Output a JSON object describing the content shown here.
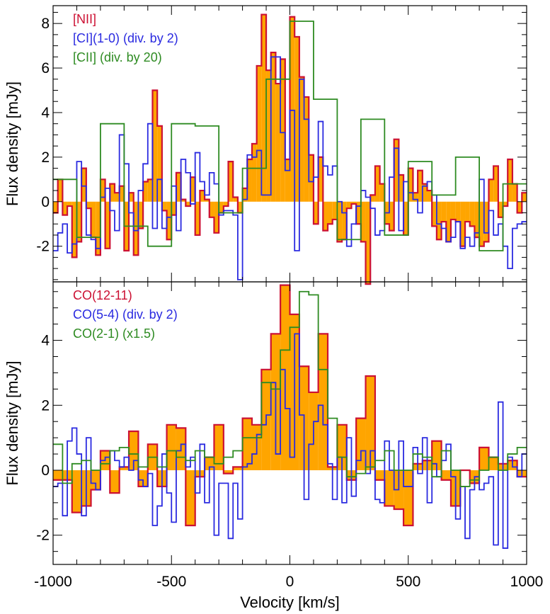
{
  "chart_data": [
    {
      "type": "line",
      "step": true,
      "xlabel": "",
      "ylabel": "Flux density [mJy]",
      "xlim": [
        -1000,
        1000
      ],
      "ylim": [
        -3.6,
        8.8
      ],
      "yticks": [
        -2,
        0,
        2,
        4,
        6,
        8
      ],
      "colors": {
        "primary": "#cc1133",
        "secondary": "#2a2ae0",
        "tertiary": "#2e8b22",
        "fill": "#ffa500"
      },
      "series": [
        {
          "name": "[NII]",
          "style": "filled",
          "x": [
            -1000,
            -980,
            -960,
            -940,
            -920,
            -900,
            -880,
            -860,
            -840,
            -820,
            -800,
            -780,
            -760,
            -740,
            -720,
            -700,
            -680,
            -660,
            -640,
            -620,
            -600,
            -580,
            -560,
            -540,
            -520,
            -500,
            -480,
            -460,
            -440,
            -420,
            -400,
            -380,
            -360,
            -340,
            -320,
            -300,
            -280,
            -260,
            -240,
            -220,
            -200,
            -180,
            -160,
            -140,
            -120,
            -100,
            -80,
            -60,
            -40,
            -20,
            0,
            20,
            40,
            60,
            80,
            100,
            120,
            140,
            160,
            180,
            200,
            220,
            240,
            260,
            280,
            300,
            320,
            340,
            360,
            380,
            400,
            420,
            440,
            460,
            480,
            500,
            520,
            540,
            560,
            580,
            600,
            620,
            640,
            660,
            680,
            700,
            720,
            740,
            760,
            780,
            800,
            820,
            840,
            860,
            880,
            900,
            920,
            940,
            960,
            980
          ],
          "values": [
            -0.5,
            1.0,
            -0.6,
            -0.2,
            -2.5,
            -1.8,
            1.5,
            -0.3,
            -1.6,
            -2.4,
            1.0,
            -2.1,
            0.8,
            0.4,
            0.7,
            -2.2,
            0.4,
            -2.4,
            -1.2,
            0.9,
            1.0,
            5.0,
            3.4,
            -0.4,
            -1.7,
            -0.6,
            1.3,
            0.1,
            -0.2,
            1.1,
            -1.5,
            0.5,
            0.1,
            -0.7,
            -1.4,
            -0.5,
            -0.2,
            1.8,
            0.2,
            -0.5,
            0.6,
            1.9,
            2.6,
            6.1,
            8.4,
            5.9,
            6.7,
            5.3,
            6.4,
            1.9,
            8.3,
            7.4,
            5.6,
            4.7,
            2.1,
            -1.0,
            2.0,
            -1.3,
            -1.0,
            -0.8,
            -1.8,
            -1.7,
            -0.3,
            -0.1,
            -1.0,
            -1.8,
            -3.7,
            0.3,
            1.6,
            0.8,
            -1.0,
            -1.3,
            2.8,
            1.2,
            -1.5,
            1.5,
            0.4,
            1.4,
            0.8,
            0.5,
            -1.1,
            -1.7,
            -0.9,
            -1.8,
            -0.8,
            -0.9,
            -2.0,
            -0.9,
            -1.1,
            -1.6,
            -2.0,
            -1.8,
            1.0,
            1.6,
            -0.7,
            -0.2,
            1.9,
            0.8,
            -0.5,
            0.4
          ]
        },
        {
          "name": "[CI](1-0) (div. by 2)",
          "style": "step",
          "x": [
            -1000,
            -980,
            -960,
            -940,
            -920,
            -900,
            -880,
            -860,
            -840,
            -820,
            -800,
            -780,
            -760,
            -740,
            -720,
            -700,
            -680,
            -660,
            -640,
            -620,
            -600,
            -580,
            -560,
            -540,
            -520,
            -500,
            -480,
            -460,
            -440,
            -420,
            -400,
            -380,
            -360,
            -340,
            -320,
            -300,
            -280,
            -260,
            -240,
            -220,
            -200,
            -180,
            -160,
            -140,
            -120,
            -100,
            -80,
            -60,
            -40,
            -20,
            0,
            20,
            40,
            60,
            80,
            100,
            120,
            140,
            160,
            180,
            200,
            220,
            240,
            260,
            280,
            300,
            320,
            340,
            360,
            380,
            400,
            420,
            440,
            460,
            480,
            500,
            520,
            540,
            560,
            580,
            600,
            620,
            640,
            660,
            680,
            700,
            720,
            740,
            760,
            780,
            800,
            820,
            840,
            860,
            880,
            900,
            920,
            940,
            960,
            980
          ],
          "values": [
            -2.2,
            -1.4,
            -1.0,
            -2.3,
            -1.9,
            1.8,
            0.7,
            -1.5,
            -1.7,
            -2.1,
            0.2,
            0.6,
            -0.4,
            -1.3,
            3.0,
            1.7,
            -0.5,
            -1.3,
            0.5,
            1.7,
            3.5,
            -1.2,
            1.0,
            -1.2,
            -0.7,
            0.7,
            -1.3,
            1.9,
            1.3,
            -0.1,
            2.2,
            0.9,
            0.3,
            1.3,
            0.8,
            -0.6,
            -0.4,
            -0.4,
            -0.6,
            -3.5,
            0.1,
            2.1,
            2.0,
            2.3,
            0.3,
            0.3,
            6.5,
            6.5,
            3.1,
            1.4,
            4.1,
            -2.2,
            5.5,
            3.7,
            0.9,
            1.1,
            3.6,
            1.6,
            1.2,
            1.6,
            0.0,
            -0.5,
            -2.0,
            -1.0,
            -0.2,
            0.5,
            0.2,
            -0.3,
            -1.5,
            -1.3,
            -0.5,
            1.1,
            2.4,
            -1.3,
            0.9,
            0.4,
            0.1,
            -0.5,
            0.7,
            0.9,
            0.3,
            -1.0,
            -1.2,
            -1.8,
            -1.6,
            -0.9,
            -2.1,
            -1.6,
            -2.0,
            -1.4,
            1.0,
            -1.4,
            -0.4,
            -1.5,
            -1.0,
            -2.0,
            -3.0,
            -1.2,
            -1.0,
            -0.9
          ]
        },
        {
          "name": "[CII] (div. by 20)",
          "style": "step",
          "x": [
            -1000,
            -900,
            -800,
            -700,
            -600,
            -500,
            -400,
            -300,
            -200,
            -100,
            0,
            100,
            200,
            300,
            400,
            500,
            600,
            700,
            800,
            900
          ],
          "values": [
            1.0,
            -1.6,
            3.5,
            -1.1,
            -2.0,
            3.5,
            3.4,
            -0.5,
            1.5,
            5.5,
            8.1,
            4.6,
            -1.7,
            3.7,
            -1.5,
            1.8,
            0.3,
            2.0,
            -2.2,
            0.8
          ]
        }
      ]
    },
    {
      "type": "line",
      "step": true,
      "xlabel": "Velocity [km/s]",
      "ylabel": "Flux density [mJy]",
      "xlim": [
        -1000,
        1000
      ],
      "ylim": [
        -2.9,
        5.8
      ],
      "xticks": [
        -1000,
        -500,
        0,
        500,
        1000
      ],
      "yticks": [
        -2,
        0,
        2,
        4
      ],
      "series": [
        {
          "name": "CO(12-11)",
          "style": "filled",
          "x": [
            -1000,
            -960,
            -920,
            -880,
            -840,
            -800,
            -760,
            -720,
            -680,
            -640,
            -600,
            -560,
            -520,
            -480,
            -440,
            -400,
            -360,
            -320,
            -280,
            -240,
            -200,
            -160,
            -120,
            -80,
            -40,
            0,
            40,
            80,
            120,
            160,
            200,
            240,
            280,
            320,
            360,
            400,
            440,
            480,
            520,
            560,
            600,
            640,
            680,
            720,
            760,
            800,
            840,
            880,
            920,
            960
          ],
          "values": [
            -0.3,
            -0.3,
            -1.3,
            -1.1,
            -0.6,
            0.6,
            -0.7,
            0.1,
            1.2,
            -0.5,
            0.8,
            -0.5,
            1.4,
            1.3,
            -1.7,
            -0.2,
            0.4,
            1.4,
            -0.1,
            0.1,
            1.6,
            1.4,
            3.1,
            4.2,
            5.7,
            4.8,
            3.2,
            2.4,
            4.2,
            0.1,
            1.4,
            -0.3,
            1.6,
            2.9,
            -0.3,
            -1.1,
            -1.2,
            -1.7,
            0.2,
            0.3,
            0.9,
            -0.3,
            -1.1,
            0.0,
            -0.4,
            0.7,
            0.4,
            0.2,
            0.3,
            -0.2
          ]
        },
        {
          "name": "CO(5-4) (div. by 2)",
          "style": "step",
          "x": [
            -1000,
            -980,
            -960,
            -940,
            -920,
            -900,
            -880,
            -860,
            -840,
            -820,
            -800,
            -780,
            -760,
            -740,
            -720,
            -700,
            -680,
            -660,
            -640,
            -620,
            -600,
            -580,
            -560,
            -540,
            -520,
            -500,
            -480,
            -460,
            -440,
            -420,
            -400,
            -380,
            -360,
            -340,
            -320,
            -300,
            -280,
            -260,
            -240,
            -220,
            -200,
            -180,
            -160,
            -140,
            -120,
            -100,
            -80,
            -60,
            -40,
            -20,
            0,
            20,
            40,
            60,
            80,
            100,
            120,
            140,
            160,
            180,
            200,
            220,
            240,
            260,
            280,
            300,
            320,
            340,
            360,
            380,
            400,
            420,
            440,
            460,
            480,
            500,
            520,
            540,
            560,
            580,
            600,
            620,
            640,
            660,
            680,
            700,
            720,
            740,
            760,
            780,
            800,
            820,
            840,
            860,
            880,
            900,
            920,
            940,
            960,
            980
          ],
          "values": [
            -0.5,
            -0.4,
            -1.4,
            0.9,
            1.3,
            0.5,
            -1.4,
            1.0,
            -0.4,
            -0.6,
            0.3,
            0.4,
            0.6,
            0.3,
            0.1,
            0.4,
            0.0,
            0.3,
            -0.3,
            -0.5,
            -0.1,
            -1.7,
            -1.1,
            0.5,
            -0.7,
            -1.6,
            0.6,
            0.8,
            0.1,
            0.4,
            -0.7,
            0.8,
            -1.0,
            0.1,
            -2.0,
            -0.4,
            -0.4,
            -2.1,
            -0.4,
            -1.5,
            0.1,
            0.2,
            0.5,
            1.1,
            1.4,
            1.7,
            2.7,
            0.5,
            3.1,
            1.9,
            0.4,
            4.2,
            1.7,
            -0.9,
            0.8,
            1.5,
            2.0,
            1.4,
            0.2,
            -0.9,
            0.4,
            -1.0,
            1.0,
            -0.8,
            0.3,
            0.6,
            -0.1,
            0.6,
            -0.9,
            -1.0,
            0.9,
            0.0,
            -0.6,
            0.9,
            -0.5,
            -0.5,
            0.7,
            -0.1,
            1.0,
            -1.0,
            0.2,
            -0.2,
            0.3,
            0.8,
            -0.2,
            -1.5,
            -0.5,
            -2.1,
            -0.6,
            -0.2,
            -0.6,
            -0.4,
            -0.2,
            -2.3,
            2.1,
            -2.4,
            0.4,
            0.1,
            -0.2,
            0.5
          ]
        },
        {
          "name": "CO(2-1) (x1.5)",
          "style": "step",
          "x": [
            -1000,
            -960,
            -920,
            -880,
            -840,
            -800,
            -760,
            -720,
            -680,
            -640,
            -600,
            -560,
            -520,
            -480,
            -440,
            -400,
            -360,
            -320,
            -280,
            -240,
            -200,
            -160,
            -120,
            -80,
            -40,
            0,
            40,
            80,
            120,
            160,
            200,
            240,
            280,
            320,
            360,
            400,
            440,
            480,
            520,
            560,
            600,
            640,
            680,
            720,
            760,
            800,
            840,
            880,
            920,
            960
          ],
          "values": [
            0.8,
            -0.4,
            0.2,
            0.3,
            0.0,
            0.2,
            0.6,
            0.7,
            0.5,
            0.1,
            0.4,
            0.1,
            0.6,
            0.4,
            0.3,
            0.6,
            0.4,
            0.2,
            0.4,
            0.6,
            1.0,
            1.0,
            2.7,
            2.5,
            3.7,
            4.4,
            5.5,
            5.4,
            3.1,
            1.6,
            0.4,
            -0.2,
            -0.1,
            0.1,
            0.3,
            0.6,
            0.0,
            0.0,
            0.5,
            0.4,
            -0.2,
            0.6,
            0.0,
            -0.5,
            -0.3,
            0.0,
            0.4,
            0.0,
            0.5,
            0.7
          ]
        }
      ]
    }
  ]
}
